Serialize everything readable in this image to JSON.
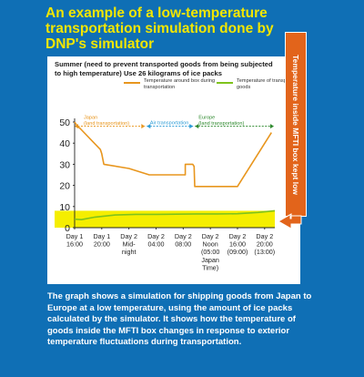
{
  "headline": {
    "line1": "An example of a low-temperature",
    "line2": "transportation simulation done by",
    "line3": "DNP's simulator"
  },
  "side_label": "Temperature inside MFTI box kept low",
  "caption": "The graph shows a simulation for shipping goods from Japan to Europe at a low temperature, using the amount of ice packs calculated by the simulator. It shows how the temperature of goods inside the MFTI box changes in response to exterior temperature fluctuations during transportation.",
  "colors": {
    "background": "#0f6fb5",
    "headline": "#f2e600",
    "box_temp_line": "#e8961e",
    "goods_temp_line": "#7fc31c",
    "highlight_band": "#f5ee00",
    "side_bar": "#e2641b",
    "japan_marker": "#e8961e",
    "air_marker": "#2a9bd6",
    "europe_marker": "#2f8a2f"
  },
  "chart_data": {
    "type": "line",
    "title": "Summer (need to prevent transported goods from being subjected to high temperature) Use 26 kilograms of ice packs",
    "ylim": [
      0,
      50
    ],
    "yticks": [
      0,
      10,
      20,
      30,
      40,
      50
    ],
    "grid": false,
    "legend_position": "top",
    "x_ticks": [
      {
        "label": [
          "Day 1",
          "16:00"
        ],
        "hours": 0
      },
      {
        "label": [
          "Day 1",
          "20:00"
        ],
        "hours": 4
      },
      {
        "label": [
          "Day 2",
          "Mid-",
          "night"
        ],
        "hours": 8
      },
      {
        "label": [
          "Day 2",
          "04:00"
        ],
        "hours": 12
      },
      {
        "label": [
          "Day 2",
          "08:00"
        ],
        "hours": 16
      },
      {
        "label": [
          "Day 2",
          "Noon",
          "(05:00",
          "Japan",
          "Time)"
        ],
        "hours": 20
      },
      {
        "label": [
          "Day 2",
          "16:00",
          "(09:00)"
        ],
        "hours": 24
      },
      {
        "label": [
          "Day 2",
          "20:00",
          "(13:00)"
        ],
        "hours": 28
      }
    ],
    "x_range_hours": [
      0,
      29.5
    ],
    "series": [
      {
        "name": "Temperature around box during transportation",
        "x_hours": [
          0,
          0.4,
          0.8,
          3.8,
          4.0,
          4.3,
          8.0,
          11.0,
          15.5,
          16.3,
          16.3,
          17.4,
          17.6,
          17.7,
          19.0,
          21.5,
          24.0,
          24.1,
          29.0
        ],
        "values": [
          50,
          48,
          47,
          37,
          35,
          30,
          28,
          25,
          25,
          25,
          30,
          30,
          29,
          19.5,
          19.5,
          19.5,
          19.5,
          20,
          45
        ]
      },
      {
        "name": "Temperature of transported goods",
        "x_hours": [
          0,
          1,
          3,
          6,
          9,
          12,
          15,
          18,
          21,
          24,
          27,
          29.5
        ],
        "values": [
          4,
          3.8,
          5,
          6,
          6.3,
          6.3,
          6.4,
          6.5,
          6.5,
          6.6,
          7.2,
          8
        ]
      }
    ],
    "phases": [
      {
        "label": [
          "Japan",
          "(land transportation)"
        ],
        "start_hours": 0,
        "end_hours": 10.5,
        "color": "#e8961e"
      },
      {
        "label": [
          "Air transportation"
        ],
        "start_hours": 10.5,
        "end_hours": 17.6,
        "color": "#2a9bd6"
      },
      {
        "label": [
          "Europe",
          "(land transportation)"
        ],
        "start_hours": 17.6,
        "end_hours": 29.5,
        "color": "#2f8a2f"
      }
    ],
    "highlight_band": [
      0,
      8
    ]
  }
}
